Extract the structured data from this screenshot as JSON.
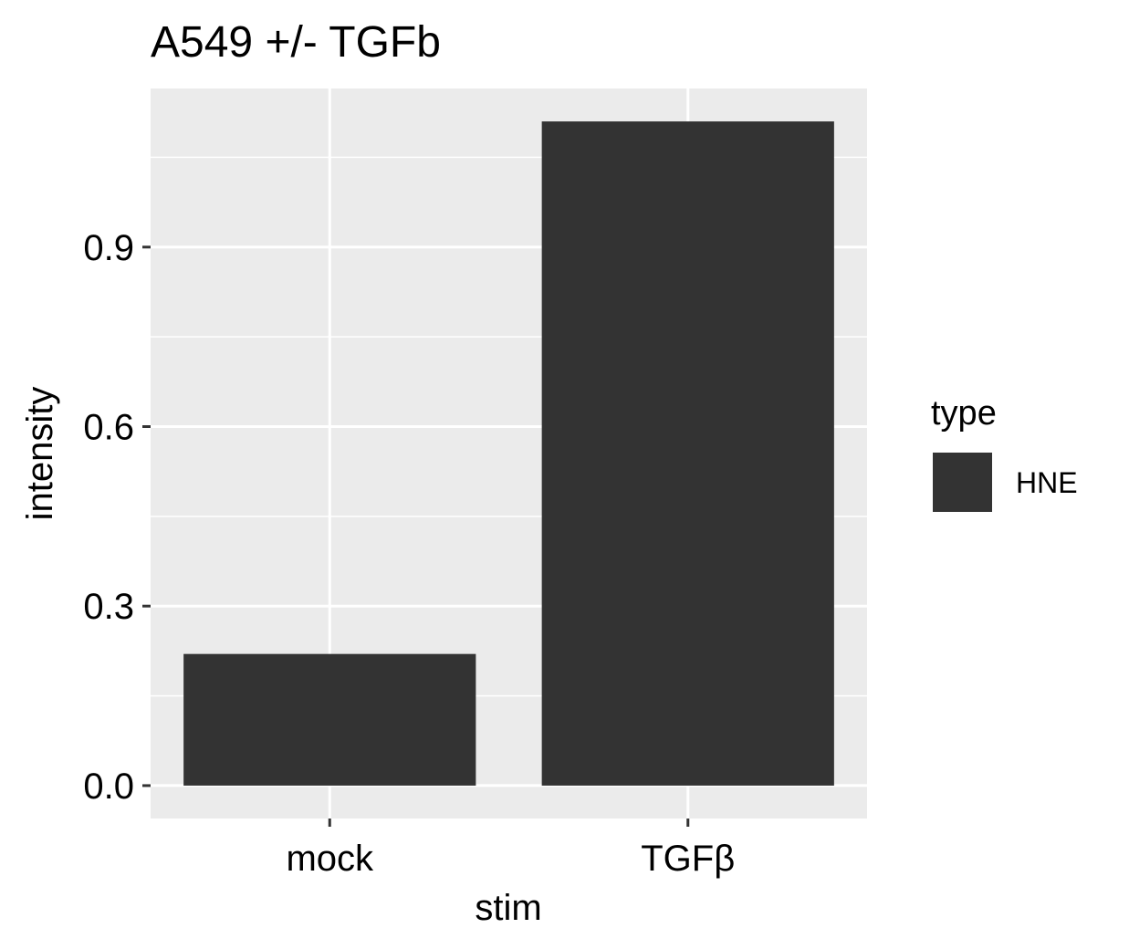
{
  "colors": {
    "panel_background": "#EBEBEB",
    "gridline": "#FFFFFF",
    "bar_fill": "#333333",
    "axis_tick": "#333333",
    "text": "#000000"
  },
  "chart_data": {
    "type": "bar",
    "title": "A549 +/- TGFb",
    "xlabel": "stim",
    "ylabel": "intensity",
    "categories": [
      "mock",
      "TGFβ"
    ],
    "series": [
      {
        "name": "HNE",
        "values": [
          0.22,
          1.11
        ]
      }
    ],
    "ylim": [
      -0.055,
      1.165
    ],
    "yticks": [
      0.0,
      0.3,
      0.6,
      0.9
    ],
    "ytick_labels": [
      "0.0",
      "0.3",
      "0.6",
      "0.9"
    ],
    "grid": true,
    "legend": {
      "title": "type",
      "placement": "right",
      "entries": [
        "HNE"
      ]
    }
  }
}
